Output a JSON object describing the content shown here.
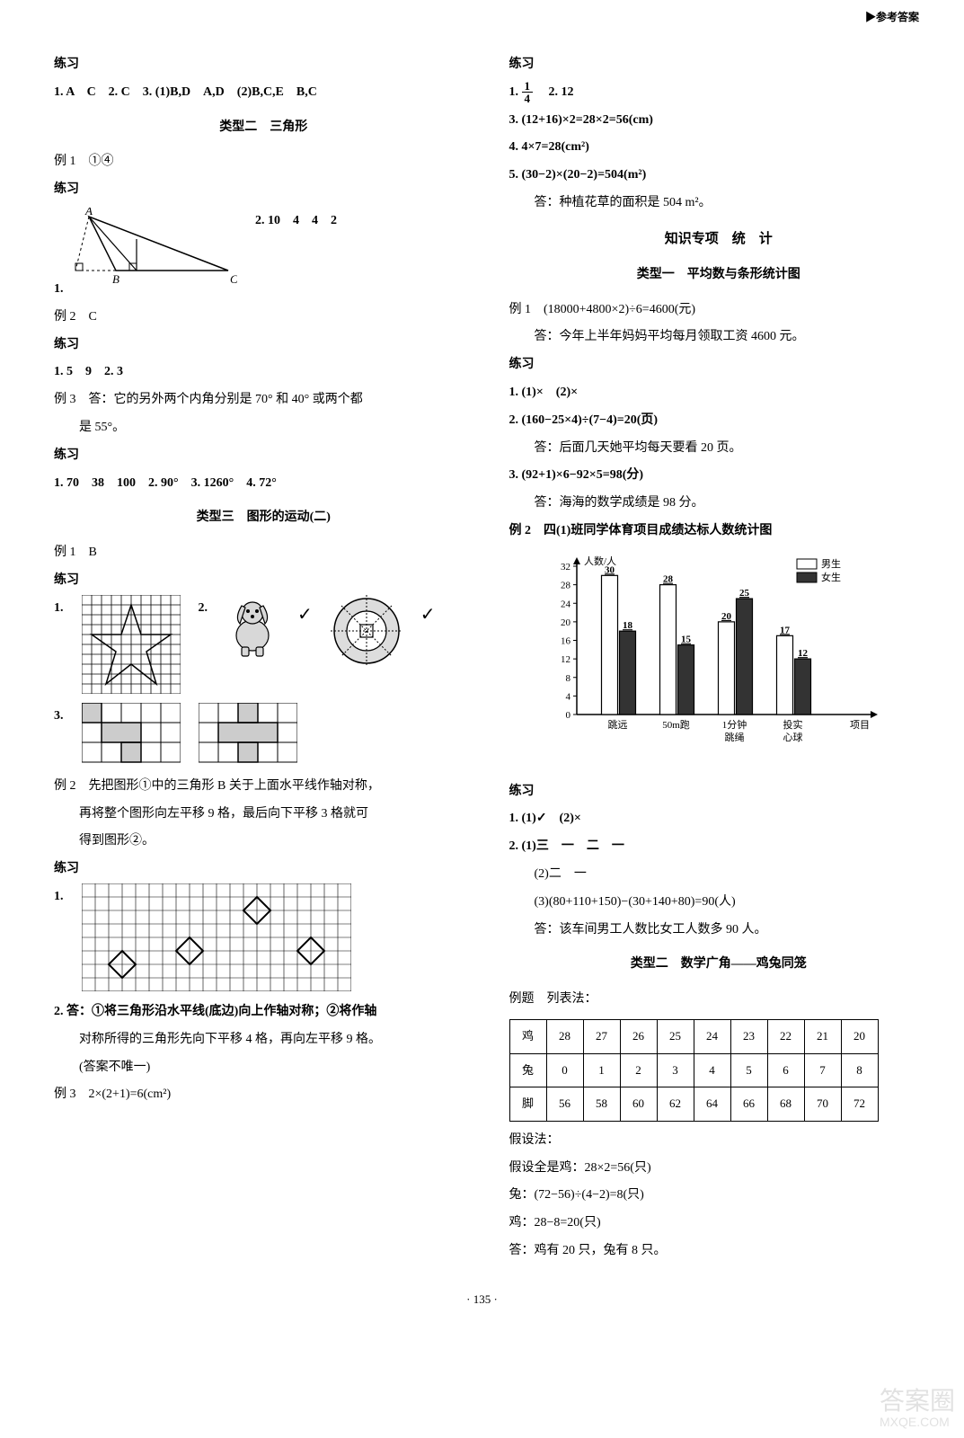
{
  "header": {
    "right_label": "▶参考答案"
  },
  "left": {
    "p1": "练习",
    "p2": "1. A　C　2. C　3. (1)B,D　A,D　(2)B,C,E　B,C",
    "t1": "类型二　三角形",
    "p3": "例 1　①④",
    "p4": "练习",
    "q1a_label": "1.",
    "triangle": {
      "A": "A",
      "B": "B",
      "C": "C"
    },
    "q1b": "2. 10　4　4　2",
    "p5": "例 2　C",
    "p6": "练习",
    "p7": "1. 5　9　2. 3",
    "p8": "例 3　答：它的另外两个内角分别是 70° 和 40° 或两个都",
    "p8b": "是 55°。",
    "p9": "练习",
    "p10": "1. 70　38　100　2. 90°　3. 1260°　4. 72°",
    "t2": "类型三　图形的运动(二)",
    "p11": "例 1　B",
    "p12": "练习",
    "q_grid_1": "1.",
    "q_grid_2": "2.",
    "check": "✓",
    "q_grid_3": "3.",
    "p13": "例 2　先把图形①中的三角形 B 关于上面水平线作轴对称，",
    "p13b": "再将整个图形向左平移 9 格，最后向下平移 3 格就可",
    "p13c": "得到图形②。",
    "p14": "练习",
    "q_grid_4": "1.",
    "p15": "2. 答：①将三角形沿水平线(底边)向上作轴对称；②将作轴",
    "p15b": "对称所得的三角形先向下平移 4 格，再向左平移 9 格。",
    "p15c": "(答案不唯一)",
    "p16": "例 3　2×(2+1)=6(cm²)"
  },
  "right": {
    "p1": "练习",
    "p2a": "1.",
    "frac_n": "1",
    "frac_d": "4",
    "p2b": "　2. 12",
    "p3": "3. (12+16)×2=28×2=56(cm)",
    "p4": "4. 4×7=28(cm²)",
    "p5": "5. (30−2)×(20−2)=504(m²)",
    "p5b": "答：种植花草的面积是 504 m²。",
    "t1": "知识专项　统　计",
    "t2": "类型一　平均数与条形统计图",
    "p6": "例 1　(18000+4800×2)÷6=4600(元)",
    "p6b": "答：今年上半年妈妈平均每月领取工资 4600 元。",
    "p7": "练习",
    "p8": "1. (1)×　(2)×",
    "p9": "2. (160−25×4)÷(7−4)=20(页)",
    "p9b": "答：后面几天她平均每天要看 20 页。",
    "p10": "3. (92+1)×6−92×5=98(分)",
    "p10b": "答：海海的数学成绩是 98 分。",
    "p11": "例 2　四(1)班同学体育项目成绩达标人数统计图",
    "chart": {
      "ylabel": "人数/人",
      "legend_boy": "男生",
      "legend_girl": "女生",
      "ymax": 32,
      "ytick_step": 4,
      "yticks": [
        0,
        4,
        8,
        12,
        16,
        20,
        24,
        28,
        32
      ],
      "categories": [
        "跳远",
        "50m跑",
        "1分钟\n跳绳",
        "投实\n心球",
        "项目"
      ],
      "boys": [
        30,
        28,
        20,
        17
      ],
      "girls": [
        18,
        15,
        25,
        12
      ],
      "boy_labels": [
        "30",
        "28",
        "20",
        "17"
      ],
      "girl_labels": [
        "18",
        "15",
        "25",
        "12"
      ],
      "boy_color": "#ffffff",
      "girl_color": "#333333",
      "axis_color": "#000000",
      "label_fontsize": 11
    },
    "p12": "练习",
    "p13": "1. (1)✓　(2)×",
    "p14": "2. (1)三　一　二　一",
    "p14b": "(2)二　一",
    "p14c": "(3)(80+110+150)−(30+140+80)=90(人)",
    "p14d": "答：该车间男工人数比女工人数多 90 人。",
    "t3": "类型二　数学广角——鸡兔同笼",
    "p15": "例题　列表法：",
    "table": {
      "rows": [
        [
          "鸡",
          "28",
          "27",
          "26",
          "25",
          "24",
          "23",
          "22",
          "21",
          "20"
        ],
        [
          "兔",
          "0",
          "1",
          "2",
          "3",
          "4",
          "5",
          "6",
          "7",
          "8"
        ],
        [
          "脚",
          "56",
          "58",
          "60",
          "62",
          "64",
          "66",
          "68",
          "70",
          "72"
        ]
      ]
    },
    "p16": "假设法：",
    "p17": "假设全是鸡：28×2=56(只)",
    "p18": "兔：(72−56)÷(4−2)=8(只)",
    "p19": "鸡：28−8=20(只)",
    "p20": "答：鸡有 20 只，兔有 8 只。"
  },
  "footer": {
    "page": "· 135 ·"
  },
  "watermark": {
    "l1": "答案圈",
    "l2": "MXQE.COM"
  }
}
